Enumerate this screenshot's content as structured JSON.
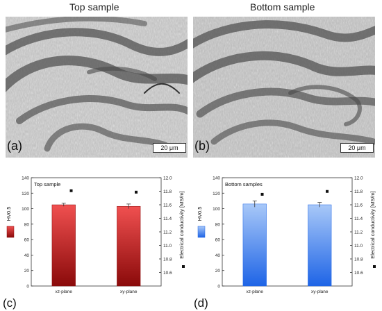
{
  "columns": {
    "left_title": "Top sample",
    "right_title": "Bottom sample"
  },
  "micrographs": [
    {
      "panel": "(a)",
      "scale_bar": "20 μm"
    },
    {
      "panel": "(b)",
      "scale_bar": "20 μm"
    }
  ],
  "colors": {
    "top_bar_top": "#f05050",
    "top_bar_bottom": "#8a0a0a",
    "bottom_bar_top": "#a8c8f8",
    "bottom_bar_bottom": "#1e64e6"
  },
  "chart_data": [
    {
      "type": "bar",
      "panel": "(c)",
      "title": "Top sample",
      "categories": [
        "xz-plane",
        "xy-plane"
      ],
      "ylabel": "HV0.5",
      "y2label": "Electrical conductivity [MS/m]",
      "ylim": [
        0,
        140
      ],
      "yticks": [
        "0",
        "20",
        "40",
        "60",
        "80",
        "100",
        "120",
        "140"
      ],
      "y2lim": [
        10.5,
        12.0
      ],
      "y2ticks": [
        "10.6",
        "10.8",
        "11.0",
        "11.2",
        "11.4",
        "11.6",
        "11.8",
        "12.0"
      ],
      "series": [
        {
          "values": [
            105,
            103
          ],
          "errors": [
            2,
            3
          ],
          "axis": "left"
        },
        {
          "values": [
            11.82,
            11.8
          ],
          "axis": "right",
          "marker": "square"
        }
      ],
      "legend": "left"
    },
    {
      "type": "bar",
      "panel": "(d)",
      "title": "Bottom samples",
      "categories": [
        "xz-plane",
        "xy-plane"
      ],
      "ylabel": "HV0.5",
      "y2label": "Electrical conductivity [MS/m]",
      "ylim": [
        0,
        140
      ],
      "yticks": [
        "0",
        "20",
        "40",
        "60",
        "80",
        "100",
        "120",
        "140"
      ],
      "y2lim": [
        10.5,
        12.0
      ],
      "y2ticks": [
        "10.6",
        "10.8",
        "11.0",
        "11.2",
        "11.4",
        "11.6",
        "11.8",
        "12.0"
      ],
      "series": [
        {
          "values": [
            106,
            105
          ],
          "errors": [
            4,
            3
          ],
          "axis": "left"
        },
        {
          "values": [
            11.77,
            11.81
          ],
          "axis": "right",
          "marker": "square"
        }
      ],
      "legend": "left"
    }
  ]
}
